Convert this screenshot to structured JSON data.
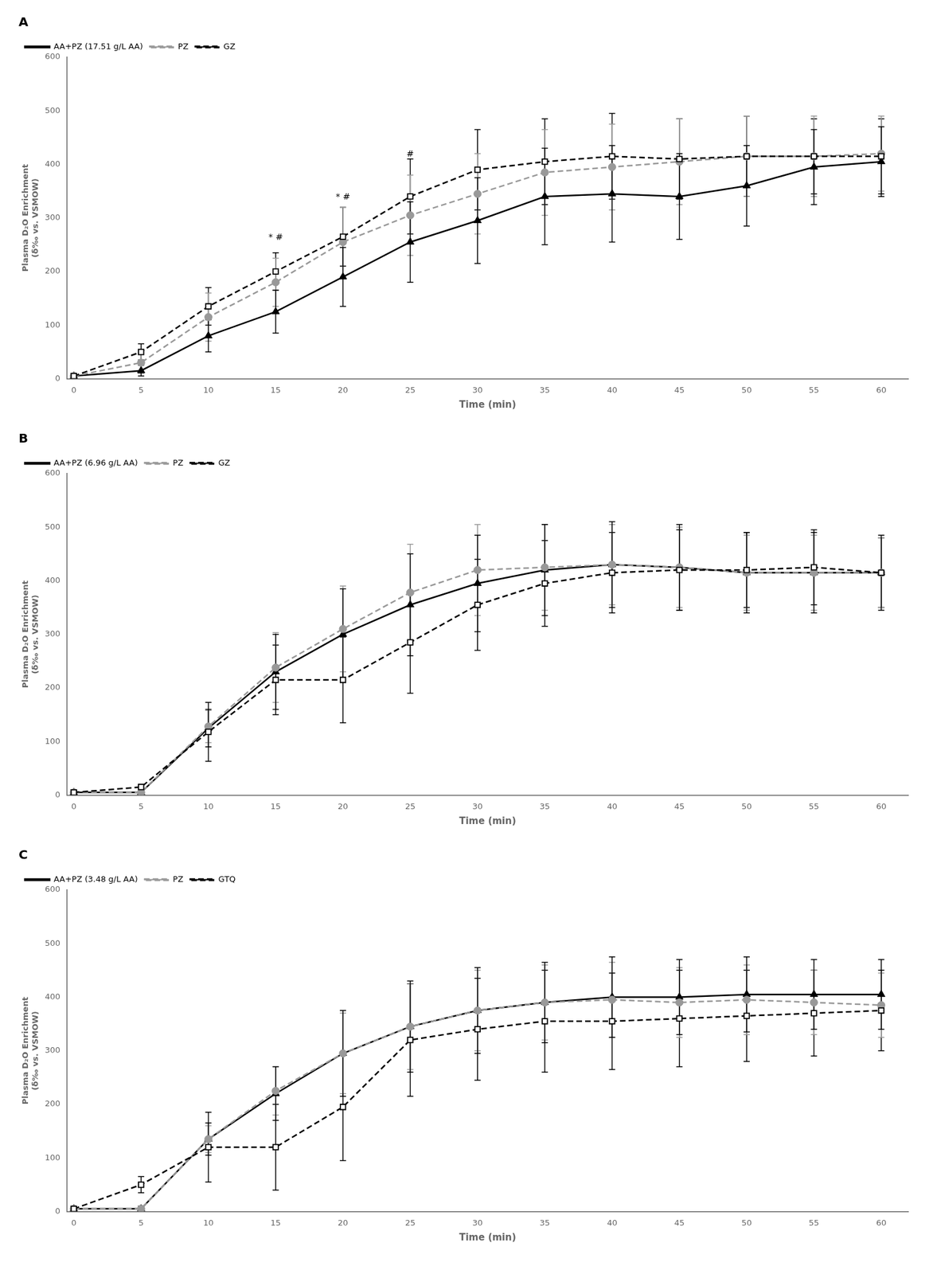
{
  "chart_data": [
    {
      "type": "line",
      "title": "A",
      "x": [
        0,
        5,
        10,
        15,
        20,
        25,
        30,
        35,
        40,
        45,
        50,
        55,
        60
      ],
      "series": [
        {
          "name": "GZ",
          "color": "#000000",
          "marker": "open_square",
          "line_style": "dashed",
          "values": [
            5,
            50,
            135,
            200,
            265,
            340,
            390,
            405,
            415,
            410,
            415,
            415,
            415
          ],
          "errors": [
            5,
            15,
            35,
            35,
            55,
            70,
            75,
            80,
            80,
            75,
            75,
            70,
            70
          ]
        },
        {
          "name": "PZ",
          "color": "#999999",
          "marker": "circle",
          "line_style": "dashed",
          "values": [
            5,
            30,
            115,
            180,
            255,
            305,
            345,
            385,
            395,
            405,
            415,
            415,
            420
          ],
          "errors": [
            5,
            20,
            45,
            45,
            65,
            75,
            75,
            80,
            80,
            80,
            75,
            75,
            70
          ]
        },
        {
          "name": "AA+PZ (17.51 g/L AA)",
          "color": "#000000",
          "marker": "triangle",
          "line_style": "solid",
          "values": [
            5,
            15,
            80,
            125,
            190,
            255,
            295,
            340,
            345,
            340,
            360,
            395,
            405
          ],
          "errors": [
            5,
            10,
            30,
            40,
            55,
            75,
            80,
            90,
            90,
            80,
            75,
            70,
            65
          ]
        }
      ],
      "annotations": [
        {
          "x": 15,
          "y": 255,
          "text": "* #"
        },
        {
          "x": 20,
          "y": 330,
          "text": "* #"
        },
        {
          "x": 25,
          "y": 410,
          "text": "#"
        }
      ],
      "xlabel": "Time (min)",
      "ylabel": "Plasma D₂O Enrichment\n(δ‰ vs. VSMOW)",
      "xlim": [
        -0.5,
        62
      ],
      "xticks": [
        0,
        5,
        10,
        15,
        20,
        25,
        30,
        35,
        40,
        45,
        50,
        55,
        60
      ],
      "ylim": [
        0,
        600
      ],
      "yticks": [
        0,
        100,
        200,
        300,
        400,
        500,
        600
      ],
      "grid": false,
      "legend": "upper left"
    },
    {
      "type": "line",
      "title": "B",
      "x": [
        0,
        5,
        10,
        15,
        20,
        25,
        30,
        35,
        40,
        45,
        50,
        55,
        60
      ],
      "series": [
        {
          "name": "GZ",
          "color": "#000000",
          "marker": "open_square",
          "line_style": "dashed",
          "values": [
            5,
            15,
            118,
            215,
            215,
            285,
            355,
            395,
            415,
            420,
            420,
            425,
            415
          ],
          "errors": [
            5,
            5,
            55,
            65,
            80,
            95,
            85,
            80,
            75,
            75,
            70,
            70,
            65
          ]
        },
        {
          "name": "PZ",
          "color": "#999999",
          "marker": "circle",
          "line_style": "dashed",
          "values": [
            5,
            5,
            128,
            238,
            310,
            378,
            420,
            425,
            430,
            425,
            415,
            415,
            415
          ],
          "errors": [
            5,
            5,
            30,
            65,
            80,
            90,
            85,
            80,
            75,
            75,
            70,
            70,
            65
          ]
        },
        {
          "name": "AA+PZ (6.96 g/L AA)",
          "color": "#000000",
          "marker": "triangle",
          "line_style": "solid",
          "values": [
            5,
            5,
            125,
            230,
            300,
            355,
            395,
            420,
            430,
            425,
            415,
            415,
            415
          ],
          "errors": [
            5,
            5,
            35,
            70,
            85,
            95,
            90,
            85,
            80,
            80,
            75,
            75,
            70
          ]
        }
      ],
      "annotations": [],
      "xlabel": "Time (min)",
      "ylabel": "Plasma D₂O Enrichment\n(δ‰ vs. VSMOW)",
      "xlim": [
        -0.5,
        62
      ],
      "xticks": [
        0,
        5,
        10,
        15,
        20,
        25,
        30,
        35,
        40,
        45,
        50,
        55,
        60
      ],
      "ylim": [
        0,
        600
      ],
      "yticks": [
        0,
        100,
        200,
        300,
        400,
        500,
        600
      ],
      "grid": false,
      "legend": "upper left"
    },
    {
      "type": "line",
      "title": "C",
      "x": [
        0,
        5,
        10,
        15,
        20,
        25,
        30,
        35,
        40,
        45,
        50,
        55,
        60
      ],
      "series": [
        {
          "name": "GTQ",
          "color": "#000000",
          "marker": "open_square",
          "line_style": "dashed",
          "values": [
            5,
            50,
            120,
            120,
            195,
            320,
            340,
            355,
            355,
            360,
            365,
            370,
            375
          ],
          "errors": [
            5,
            15,
            65,
            80,
            100,
            105,
            95,
            95,
            90,
            90,
            85,
            80,
            75
          ]
        },
        {
          "name": "PZ",
          "color": "#999999",
          "marker": "circle",
          "line_style": "dashed",
          "values": [
            5,
            5,
            135,
            225,
            295,
            345,
            375,
            390,
            395,
            390,
            395,
            390,
            385
          ],
          "errors": [
            5,
            5,
            25,
            45,
            75,
            80,
            75,
            70,
            70,
            65,
            65,
            60,
            60
          ]
        },
        {
          "name": "AA+PZ (3.48 g/L AA)",
          "color": "#000000",
          "marker": "triangle",
          "line_style": "solid",
          "values": [
            5,
            5,
            135,
            220,
            295,
            345,
            375,
            390,
            400,
            400,
            405,
            405,
            405
          ],
          "errors": [
            5,
            5,
            30,
            50,
            80,
            85,
            80,
            75,
            75,
            70,
            70,
            65,
            65
          ]
        }
      ],
      "annotations": [],
      "xlabel": "Time (min)",
      "ylabel": "Plasma D₂O Enrichment\n(δ‰ vs. VSMOW)",
      "xlim": [
        -0.5,
        62
      ],
      "xticks": [
        0,
        5,
        10,
        15,
        20,
        25,
        30,
        35,
        40,
        45,
        50,
        55,
        60
      ],
      "ylim": [
        0,
        600
      ],
      "yticks": [
        0,
        100,
        200,
        300,
        400,
        500,
        600
      ],
      "grid": false,
      "legend": "upper left"
    }
  ]
}
